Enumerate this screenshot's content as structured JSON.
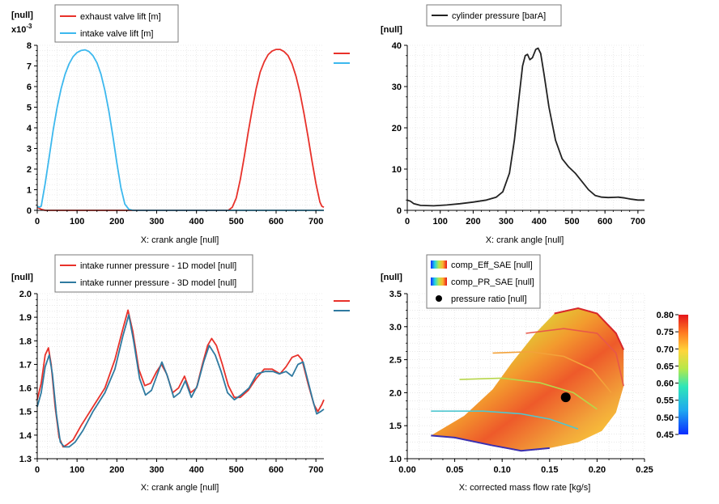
{
  "colors": {
    "red": "#e8312a",
    "blue": "#3cb8ee",
    "black": "#222222",
    "steel": "#2f7aa0",
    "grid": "#dcdcdc"
  },
  "chart_data": [
    {
      "type": "line",
      "unit_label": "[null]",
      "exponent_label": "x10",
      "exponent_sup": "-3",
      "xlabel": "X: crank angle [null]",
      "xlim": [
        0,
        720
      ],
      "ylim": [
        0,
        8
      ],
      "xticks": [
        0,
        100,
        200,
        300,
        400,
        500,
        600,
        700
      ],
      "yticks": [
        0,
        1,
        2,
        3,
        4,
        5,
        6,
        7,
        8
      ],
      "legend_position": "top-left",
      "series": [
        {
          "name": "exhaust valve lift [m]",
          "color": "#e8312a",
          "points": [
            [
              0,
              0.15
            ],
            [
              10,
              0.05
            ],
            [
              20,
              0
            ],
            [
              480,
              0
            ],
            [
              490,
              0.15
            ],
            [
              500,
              0.6
            ],
            [
              510,
              1.5
            ],
            [
              520,
              2.6
            ],
            [
              530,
              3.8
            ],
            [
              540,
              4.9
            ],
            [
              550,
              5.9
            ],
            [
              560,
              6.7
            ],
            [
              570,
              7.2
            ],
            [
              580,
              7.55
            ],
            [
              590,
              7.72
            ],
            [
              600,
              7.8
            ],
            [
              610,
              7.8
            ],
            [
              620,
              7.7
            ],
            [
              630,
              7.5
            ],
            [
              640,
              7.1
            ],
            [
              650,
              6.5
            ],
            [
              660,
              5.7
            ],
            [
              670,
              4.7
            ],
            [
              680,
              3.6
            ],
            [
              690,
              2.4
            ],
            [
              700,
              1.3
            ],
            [
              710,
              0.4
            ],
            [
              715,
              0.2
            ],
            [
              720,
              0.15
            ]
          ]
        },
        {
          "name": "intake valve lift [m]",
          "color": "#3cb8ee",
          "points": [
            [
              0,
              0.2
            ],
            [
              5,
              0.15
            ],
            [
              10,
              0.2
            ],
            [
              20,
              1.3
            ],
            [
              30,
              2.6
            ],
            [
              40,
              3.9
            ],
            [
              50,
              5.0
            ],
            [
              60,
              5.9
            ],
            [
              70,
              6.6
            ],
            [
              80,
              7.1
            ],
            [
              90,
              7.45
            ],
            [
              100,
              7.65
            ],
            [
              110,
              7.75
            ],
            [
              120,
              7.78
            ],
            [
              130,
              7.7
            ],
            [
              140,
              7.5
            ],
            [
              150,
              7.15
            ],
            [
              160,
              6.6
            ],
            [
              170,
              5.8
            ],
            [
              180,
              4.8
            ],
            [
              190,
              3.6
            ],
            [
              200,
              2.3
            ],
            [
              210,
              1.1
            ],
            [
              220,
              0.3
            ],
            [
              230,
              0.05
            ],
            [
              240,
              0
            ],
            [
              720,
              0
            ]
          ]
        }
      ]
    },
    {
      "type": "line",
      "unit_label": "[null]",
      "xlabel": "X: crank angle [null]",
      "xlim": [
        0,
        720
      ],
      "ylim": [
        0,
        40
      ],
      "xticks": [
        0,
        100,
        200,
        300,
        400,
        500,
        600,
        700
      ],
      "yticks": [
        0,
        10,
        20,
        30,
        40
      ],
      "legend_position": "top-center",
      "series": [
        {
          "name": "cylinder pressure [barA]",
          "color": "#222222",
          "points": [
            [
              0,
              2.5
            ],
            [
              10,
              2.2
            ],
            [
              20,
              1.6
            ],
            [
              40,
              1.2
            ],
            [
              80,
              1.1
            ],
            [
              120,
              1.3
            ],
            [
              160,
              1.6
            ],
            [
              200,
              2.0
            ],
            [
              240,
              2.5
            ],
            [
              270,
              3.2
            ],
            [
              290,
              4.5
            ],
            [
              310,
              9
            ],
            [
              325,
              17
            ],
            [
              340,
              28
            ],
            [
              350,
              35
            ],
            [
              358,
              37.5
            ],
            [
              365,
              37.8
            ],
            [
              372,
              36.5
            ],
            [
              380,
              37
            ],
            [
              390,
              39
            ],
            [
              397,
              39.3
            ],
            [
              405,
              38
            ],
            [
              415,
              33
            ],
            [
              430,
              25
            ],
            [
              450,
              17
            ],
            [
              470,
              12.5
            ],
            [
              490,
              10.5
            ],
            [
              510,
              9
            ],
            [
              530,
              7
            ],
            [
              550,
              5
            ],
            [
              570,
              3.6
            ],
            [
              590,
              3.2
            ],
            [
              610,
              3.1
            ],
            [
              640,
              3.2
            ],
            [
              660,
              3.0
            ],
            [
              680,
              2.7
            ],
            [
              700,
              2.5
            ],
            [
              720,
              2.5
            ]
          ]
        }
      ]
    },
    {
      "type": "line",
      "unit_label": "[null]",
      "xlabel": "X: crank angle [null]",
      "xlim": [
        0,
        720
      ],
      "ylim": [
        1.3,
        2.0
      ],
      "xticks": [
        0,
        100,
        200,
        300,
        400,
        500,
        600,
        700
      ],
      "yticks": [
        1.3,
        1.4,
        1.5,
        1.6,
        1.7,
        1.8,
        1.9,
        2.0
      ],
      "legend_position": "top-left",
      "series": [
        {
          "name": "intake runner pressure - 1D model [null]",
          "color": "#e8312a",
          "points": [
            [
              0,
              1.55
            ],
            [
              10,
              1.62
            ],
            [
              20,
              1.74
            ],
            [
              28,
              1.77
            ],
            [
              35,
              1.7
            ],
            [
              45,
              1.52
            ],
            [
              55,
              1.39
            ],
            [
              65,
              1.35
            ],
            [
              75,
              1.36
            ],
            [
              90,
              1.38
            ],
            [
              110,
              1.44
            ],
            [
              140,
              1.52
            ],
            [
              170,
              1.6
            ],
            [
              195,
              1.72
            ],
            [
              215,
              1.85
            ],
            [
              228,
              1.93
            ],
            [
              240,
              1.84
            ],
            [
              255,
              1.68
            ],
            [
              270,
              1.61
            ],
            [
              285,
              1.62
            ],
            [
              300,
              1.67
            ],
            [
              312,
              1.7
            ],
            [
              325,
              1.66
            ],
            [
              340,
              1.58
            ],
            [
              355,
              1.6
            ],
            [
              370,
              1.65
            ],
            [
              385,
              1.58
            ],
            [
              400,
              1.6
            ],
            [
              415,
              1.7
            ],
            [
              428,
              1.78
            ],
            [
              438,
              1.81
            ],
            [
              450,
              1.78
            ],
            [
              465,
              1.7
            ],
            [
              480,
              1.61
            ],
            [
              495,
              1.56
            ],
            [
              510,
              1.56
            ],
            [
              530,
              1.59
            ],
            [
              550,
              1.64
            ],
            [
              570,
              1.68
            ],
            [
              590,
              1.68
            ],
            [
              610,
              1.66
            ],
            [
              625,
              1.69
            ],
            [
              640,
              1.73
            ],
            [
              655,
              1.74
            ],
            [
              665,
              1.72
            ],
            [
              680,
              1.62
            ],
            [
              695,
              1.53
            ],
            [
              705,
              1.5
            ],
            [
              715,
              1.53
            ],
            [
              720,
              1.55
            ]
          ]
        },
        {
          "name": "intake runner pressure - 3D model [null]",
          "color": "#2f7aa0",
          "points": [
            [
              0,
              1.52
            ],
            [
              10,
              1.58
            ],
            [
              20,
              1.69
            ],
            [
              30,
              1.74
            ],
            [
              38,
              1.66
            ],
            [
              48,
              1.49
            ],
            [
              58,
              1.37
            ],
            [
              68,
              1.35
            ],
            [
              80,
              1.35
            ],
            [
              95,
              1.37
            ],
            [
              115,
              1.42
            ],
            [
              140,
              1.5
            ],
            [
              170,
              1.58
            ],
            [
              195,
              1.68
            ],
            [
              215,
              1.82
            ],
            [
              230,
              1.91
            ],
            [
              242,
              1.8
            ],
            [
              257,
              1.64
            ],
            [
              272,
              1.57
            ],
            [
              287,
              1.59
            ],
            [
              300,
              1.65
            ],
            [
              313,
              1.71
            ],
            [
              327,
              1.65
            ],
            [
              343,
              1.56
            ],
            [
              358,
              1.58
            ],
            [
              372,
              1.63
            ],
            [
              387,
              1.56
            ],
            [
              402,
              1.61
            ],
            [
              418,
              1.71
            ],
            [
              432,
              1.78
            ],
            [
              447,
              1.74
            ],
            [
              462,
              1.67
            ],
            [
              478,
              1.58
            ],
            [
              495,
              1.55
            ],
            [
              512,
              1.57
            ],
            [
              532,
              1.6
            ],
            [
              552,
              1.66
            ],
            [
              572,
              1.67
            ],
            [
              592,
              1.67
            ],
            [
              608,
              1.66
            ],
            [
              625,
              1.67
            ],
            [
              640,
              1.65
            ],
            [
              655,
              1.7
            ],
            [
              668,
              1.71
            ],
            [
              680,
              1.63
            ],
            [
              692,
              1.55
            ],
            [
              702,
              1.49
            ],
            [
              712,
              1.5
            ],
            [
              720,
              1.51
            ]
          ]
        }
      ]
    },
    {
      "type": "heatmap",
      "unit_label": "[null]",
      "xlabel": "X: corrected mass flow rate [kg/s]",
      "xlim": [
        0.0,
        0.25
      ],
      "ylim": [
        1.0,
        3.5
      ],
      "xticks": [
        0.0,
        0.05,
        0.1,
        0.15,
        0.2,
        0.25
      ],
      "yticks": [
        1.0,
        1.5,
        2.0,
        2.5,
        3.0,
        3.5
      ],
      "colorbar": {
        "min": 0.45,
        "max": 0.8,
        "ticks": [
          0.45,
          0.5,
          0.55,
          0.6,
          0.65,
          0.7,
          0.75,
          0.8
        ]
      },
      "legend_position": "top-left",
      "legend": [
        {
          "name": "comp_Eff_SAE [null]",
          "kind": "rainbow"
        },
        {
          "name": "comp_PR_SAE [null]",
          "kind": "rainbow"
        },
        {
          "name": "pressure ratio [null]",
          "kind": "dot"
        }
      ],
      "map_boundary": [
        [
          0.025,
          1.35
        ],
        [
          0.06,
          1.65
        ],
        [
          0.09,
          2.05
        ],
        [
          0.11,
          2.45
        ],
        [
          0.135,
          2.9
        ],
        [
          0.155,
          3.2
        ],
        [
          0.18,
          3.28
        ],
        [
          0.2,
          3.2
        ],
        [
          0.22,
          2.9
        ],
        [
          0.228,
          2.65
        ],
        [
          0.228,
          2.1
        ],
        [
          0.22,
          1.7
        ],
        [
          0.205,
          1.42
        ],
        [
          0.18,
          1.25
        ],
        [
          0.15,
          1.16
        ],
        [
          0.12,
          1.12
        ],
        [
          0.09,
          1.2
        ],
        [
          0.05,
          1.32
        ],
        [
          0.025,
          1.35
        ]
      ],
      "pressure_ratio_point": {
        "x": 0.167,
        "y": 1.93
      }
    }
  ]
}
